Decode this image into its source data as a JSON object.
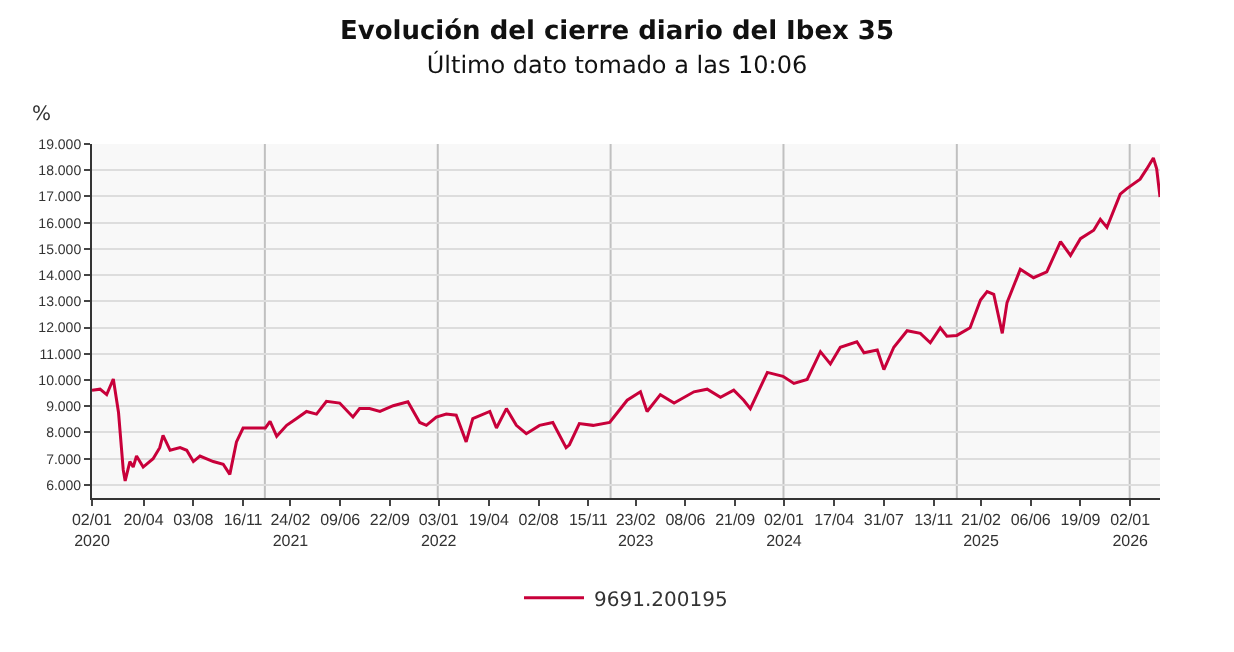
{
  "chart_data": {
    "type": "line",
    "title": "Evolución del cierre diario del Ibex 35",
    "subtitle": "Último dato tomado a las 10:06",
    "ylabel": "%",
    "x": [
      "2020-01-02",
      "2020-01-19",
      "2020-02-02",
      "2020-02-16",
      "2020-02-27",
      "2020-03-08",
      "2020-03-12",
      "2020-03-22",
      "2020-03-29",
      "2020-04-05",
      "2020-04-19",
      "2020-05-10",
      "2020-05-24",
      "2020-05-31",
      "2020-06-15",
      "2020-07-06",
      "2020-07-20",
      "2020-08-03",
      "2020-08-17",
      "2020-09-14",
      "2020-10-05",
      "2020-10-19",
      "2020-11-02",
      "2020-11-16",
      "2020-12-07",
      "2021-01-02",
      "2021-01-12",
      "2021-01-26",
      "2021-02-16",
      "2021-03-09",
      "2021-03-30",
      "2021-04-20",
      "2021-05-11",
      "2021-06-08",
      "2021-07-06",
      "2021-07-20",
      "2021-08-10",
      "2021-09-01",
      "2021-09-29",
      "2021-10-30",
      "2021-11-24",
      "2021-12-08",
      "2021-12-29",
      "2022-01-19",
      "2022-02-09",
      "2022-03-02",
      "2022-03-16",
      "2022-04-21",
      "2022-05-05",
      "2022-05-26",
      "2022-06-16",
      "2022-07-07",
      "2022-08-04",
      "2022-09-01",
      "2022-09-29",
      "2022-10-06",
      "2022-10-27",
      "2022-11-25",
      "2022-12-30",
      "2023-01-08",
      "2023-02-05",
      "2023-03-05",
      "2023-03-19",
      "2023-04-16",
      "2023-05-15",
      "2023-06-26",
      "2023-07-24",
      "2023-08-21",
      "2023-09-18",
      "2023-10-09",
      "2023-10-23",
      "2023-11-28",
      "2023-12-31",
      "2024-01-23",
      "2024-02-20",
      "2024-03-19",
      "2024-04-09",
      "2024-04-30",
      "2024-06-04",
      "2024-06-19",
      "2024-07-17",
      "2024-07-31",
      "2024-08-21",
      "2024-09-18",
      "2024-10-16",
      "2024-11-06",
      "2024-11-27",
      "2024-12-11",
      "2025-01-01",
      "2025-01-29",
      "2025-02-20",
      "2025-03-06",
      "2025-03-20",
      "2025-04-07",
      "2025-04-17",
      "2025-05-15",
      "2025-06-12",
      "2025-07-10",
      "2025-08-08",
      "2025-08-29",
      "2025-09-19",
      "2025-10-17",
      "2025-10-31",
      "2025-11-14",
      "2025-12-12",
      "2025-12-26",
      "2026-01-23",
      "2026-02-06",
      "2026-02-20",
      "2026-02-27",
      "2026-03-06"
    ],
    "series": [
      {
        "name": "9691.200195",
        "color": "#c8003a",
        "values": [
          9610,
          9650,
          9440,
          10040,
          8760,
          6570,
          6150,
          6890,
          6680,
          7100,
          6680,
          7000,
          7420,
          7890,
          7320,
          7420,
          7320,
          6890,
          7100,
          6890,
          6790,
          6400,
          7640,
          8170,
          8170,
          8170,
          8420,
          7850,
          8270,
          8530,
          8800,
          8700,
          9190,
          9120,
          8590,
          8910,
          8910,
          8800,
          9020,
          9170,
          8380,
          8270,
          8590,
          8700,
          8660,
          7640,
          8530,
          8800,
          8170,
          8910,
          8270,
          7950,
          8270,
          8380,
          7420,
          7530,
          8340,
          8270,
          8380,
          8590,
          9230,
          9550,
          8800,
          9440,
          9120,
          9550,
          9650,
          9340,
          9610,
          9230,
          8910,
          10290,
          10140,
          9870,
          10020,
          11080,
          10610,
          11250,
          11460,
          11040,
          11140,
          10400,
          11250,
          11880,
          11780,
          11420,
          11990,
          11670,
          11700,
          11990,
          13050,
          13370,
          13270,
          11780,
          12950,
          14220,
          13900,
          14120,
          15280,
          14750,
          15390,
          15710,
          16130,
          15820,
          17090,
          17300,
          17660,
          18050,
          18470,
          18050,
          16980
        ]
      }
    ],
    "xlim": [
      "2020-01-02",
      "2026-03-06"
    ],
    "xticks": [
      {
        "value": "2020-01-02",
        "label": "02/01\n2020"
      },
      {
        "value": "2020-04-20",
        "label": "20/04"
      },
      {
        "value": "2020-08-03",
        "label": "03/08"
      },
      {
        "value": "2020-11-16",
        "label": "16/11"
      },
      {
        "value": "2021-02-24",
        "label": "24/02\n2021"
      },
      {
        "value": "2021-06-09",
        "label": "09/06"
      },
      {
        "value": "2021-09-22",
        "label": "22/09"
      },
      {
        "value": "2022-01-03",
        "label": "03/01\n2022"
      },
      {
        "value": "2022-04-19",
        "label": "19/04"
      },
      {
        "value": "2022-08-02",
        "label": "02/08"
      },
      {
        "value": "2022-11-15",
        "label": "15/11"
      },
      {
        "value": "2023-02-23",
        "label": "23/02\n2023"
      },
      {
        "value": "2023-06-08",
        "label": "08/06"
      },
      {
        "value": "2023-09-21",
        "label": "21/09"
      },
      {
        "value": "2024-01-02",
        "label": "02/01\n2024"
      },
      {
        "value": "2024-04-17",
        "label": "17/04"
      },
      {
        "value": "2024-07-31",
        "label": "31/07"
      },
      {
        "value": "2024-11-13",
        "label": "13/11"
      },
      {
        "value": "2025-02-21",
        "label": "21/02\n2025"
      },
      {
        "value": "2025-06-06",
        "label": "06/06"
      },
      {
        "value": "2025-09-19",
        "label": "19/09"
      },
      {
        "value": "2026-01-02",
        "label": "02/01\n2026"
      }
    ],
    "ylim": [
      5500,
      19000
    ],
    "yticks": [
      {
        "value": 6000,
        "label": "6.000"
      },
      {
        "value": 7000,
        "label": "7.000"
      },
      {
        "value": 8000,
        "label": "8.000"
      },
      {
        "value": 9000,
        "label": "9.000"
      },
      {
        "value": 10000,
        "label": "10.000"
      },
      {
        "value": 11000,
        "label": "11.000"
      },
      {
        "value": 12000,
        "label": "12.000"
      },
      {
        "value": 13000,
        "label": "13.000"
      },
      {
        "value": 14000,
        "label": "14.000"
      },
      {
        "value": 15000,
        "label": "15.000"
      },
      {
        "value": 16000,
        "label": "16.000"
      },
      {
        "value": 17000,
        "label": "17.000"
      },
      {
        "value": 18000,
        "label": "18.000"
      },
      {
        "value": 19000,
        "label": "19.000"
      }
    ],
    "ref_lines": [
      {
        "axis": "x",
        "value": "2021-01-01",
        "color": "#c0c0c0"
      },
      {
        "axis": "x",
        "value": "2022-01-01",
        "color": "#c0c0c0"
      },
      {
        "axis": "x",
        "value": "2023-01-01",
        "color": "#c0c0c0"
      },
      {
        "axis": "x",
        "value": "2024-01-01",
        "color": "#c0c0c0"
      },
      {
        "axis": "x",
        "value": "2025-01-01",
        "color": "#c0c0c0"
      },
      {
        "axis": "x",
        "value": "2026-01-01",
        "color": "#c0c0c0"
      }
    ],
    "grid": "y",
    "legend": "bottom",
    "marker": "none",
    "line_style": "solid"
  }
}
